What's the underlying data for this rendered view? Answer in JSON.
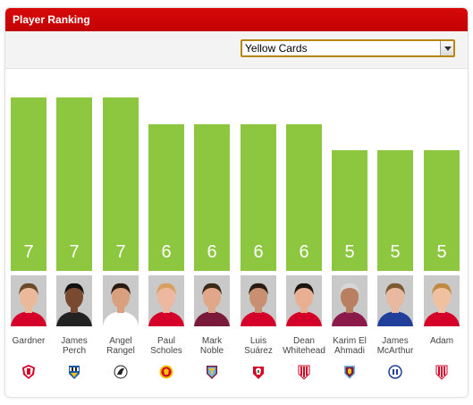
{
  "header": {
    "title": "Player Ranking"
  },
  "filter": {
    "selected": "Yellow Cards"
  },
  "colors": {
    "accent": "#cc0000",
    "bar": "#8dc63f"
  },
  "chart_data": {
    "type": "bar",
    "categories": [
      "Gardner",
      "James Perch",
      "Angel Rangel",
      "Paul Scholes",
      "Mark Noble",
      "Luis Suárez",
      "Dean Whitehead",
      "Karim El Ahmadi",
      "James McArthur",
      "Adam"
    ],
    "values": [
      7,
      7,
      7,
      6,
      6,
      6,
      6,
      5,
      5,
      5
    ],
    "ylim": [
      0,
      7
    ],
    "title": "",
    "xlabel": "",
    "ylabel": ""
  },
  "players": [
    {
      "name": "Gardner",
      "club_icon": "sunderland-crest-icon"
    },
    {
      "name": "James\nPerch",
      "club_icon": "newcastle-crest-icon"
    },
    {
      "name": "Angel\nRangel",
      "club_icon": "swansea-crest-icon"
    },
    {
      "name": "Paul\nScholes",
      "club_icon": "man-utd-crest-icon"
    },
    {
      "name": "Mark\nNoble",
      "club_icon": "west-ham-crest-icon"
    },
    {
      "name": "Luis\nSuárez",
      "club_icon": "liverpool-crest-icon"
    },
    {
      "name": "Dean\nWhitehead",
      "club_icon": "stoke-crest-icon"
    },
    {
      "name": "Karim El\nAhmadi",
      "club_icon": "aston-villa-crest-icon"
    },
    {
      "name": "James\nMcArthur",
      "club_icon": "wigan-crest-icon"
    },
    {
      "name": "Adam",
      "club_icon": "stoke-crest-icon"
    }
  ]
}
